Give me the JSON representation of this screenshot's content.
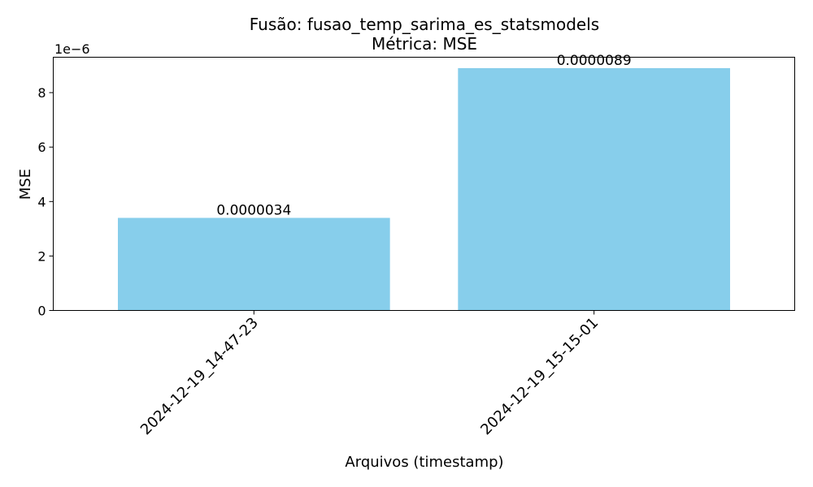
{
  "chart_data": {
    "type": "bar",
    "title": "Fusão: fusao_temp_sarima_es_statsmodels",
    "subtitle": "Métrica: MSE",
    "xlabel": "Arquivos (timestamp)",
    "ylabel": "MSE",
    "offset_text": "1e−6",
    "categories": [
      "2024-12-19_14-47-23",
      "2024-12-19_15-15-01"
    ],
    "values": [
      3.4e-06,
      8.9e-06
    ],
    "data_labels": [
      "0.0000034",
      "0.0000089"
    ],
    "ylim": [
      0,
      9.3e-06
    ],
    "yticks": [
      0,
      2e-06,
      4e-06,
      6e-06,
      8e-06
    ],
    "ytick_labels": [
      "0",
      "2",
      "4",
      "6",
      "8"
    ],
    "bar_color": "#87ceeb",
    "grid": false
  }
}
